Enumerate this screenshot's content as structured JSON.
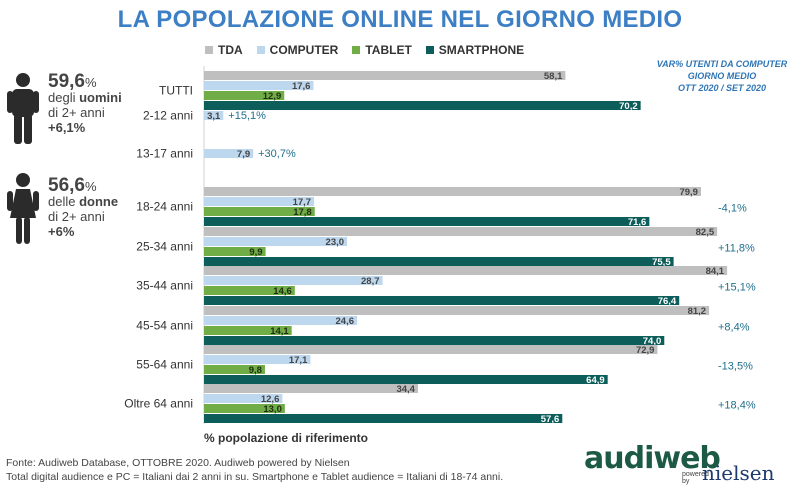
{
  "title": "LA POPOLAZIONE ONLINE NEL GIORNO MEDIO",
  "var_note": [
    "VAR% UTENTI DA COMPUTER",
    "GIORNO MEDIO",
    "OTT 2020 / SET 2020"
  ],
  "stats": {
    "men": {
      "value": "59,6",
      "unit": "%",
      "line1a": "degli ",
      "line1b": "uomini",
      "line2": "di 2+ anni",
      "change": "+6,1%"
    },
    "women": {
      "value": "56,6",
      "unit": "%",
      "line1a": "delle ",
      "line1b": "donne",
      "line2": "di 2+ anni",
      "change": "+6%"
    }
  },
  "source_line1": "Fonte: Audiweb Database, OTTOBRE 2020. Audiweb powered by Nielsen",
  "source_line2": "Total digital audience e PC = Italiani dai 2 anni in su. Smartphone e Tablet audience = Italiani di 18-74 anni.",
  "logo": {
    "audiweb": "audiweb",
    "powered": [
      "powered",
      "by"
    ],
    "nielsen": "nielsen"
  },
  "colors": {
    "TDA": "#bfbfbf",
    "COMPUTER": "#bdd7ee",
    "TABLET": "#70ad47",
    "SMARTPHONE": "#0d5e5a",
    "accent": "#3d7fc4",
    "var_text": "#1f6f8b"
  },
  "chart_data": {
    "type": "bar",
    "orientation": "horizontal",
    "xlabel": "% popolazione di riferimento",
    "xlim": [
      0,
      100
    ],
    "categories": [
      "TUTTI",
      "2-12 anni",
      "13-17 anni",
      "18-24 anni",
      "25-34 anni",
      "35-44 anni",
      "45-54 anni",
      "55-64 anni",
      "Oltre 64 anni"
    ],
    "series": [
      {
        "name": "TDA",
        "values": [
          58.1,
          null,
          null,
          79.9,
          82.5,
          84.1,
          81.2,
          72.9,
          34.4
        ],
        "labels": [
          "58,1",
          "",
          "",
          "79,9",
          "82,5",
          "84,1",
          "81,2",
          "72,9",
          "34,4"
        ]
      },
      {
        "name": "COMPUTER",
        "values": [
          17.6,
          3.1,
          7.9,
          17.7,
          23.0,
          28.7,
          24.6,
          17.1,
          12.6
        ],
        "labels": [
          "17,6",
          "3,1",
          "7,9",
          "17,7",
          "23,0",
          "28,7",
          "24,6",
          "17,1",
          "12,6"
        ]
      },
      {
        "name": "TABLET",
        "values": [
          12.9,
          null,
          null,
          17.8,
          9.9,
          14.6,
          14.1,
          9.8,
          13.0
        ],
        "labels": [
          "12,9",
          "",
          "",
          "17,8",
          "9,9",
          "14,6",
          "14,1",
          "9,8",
          "13,0"
        ]
      },
      {
        "name": "SMARTPHONE",
        "values": [
          70.2,
          null,
          null,
          71.6,
          75.5,
          76.4,
          74.0,
          64.9,
          57.6
        ],
        "labels": [
          "70,2",
          "",
          "",
          "71,6",
          "75,5",
          "76,4",
          "74,0",
          "64,9",
          "57,6"
        ]
      }
    ],
    "var_pct_computer": [
      "",
      "+15,1%",
      "+30,7%",
      "-4,1%",
      "+11,8%",
      "+15,1%",
      "+8,4%",
      "-13,5%",
      "+18,4%"
    ]
  }
}
